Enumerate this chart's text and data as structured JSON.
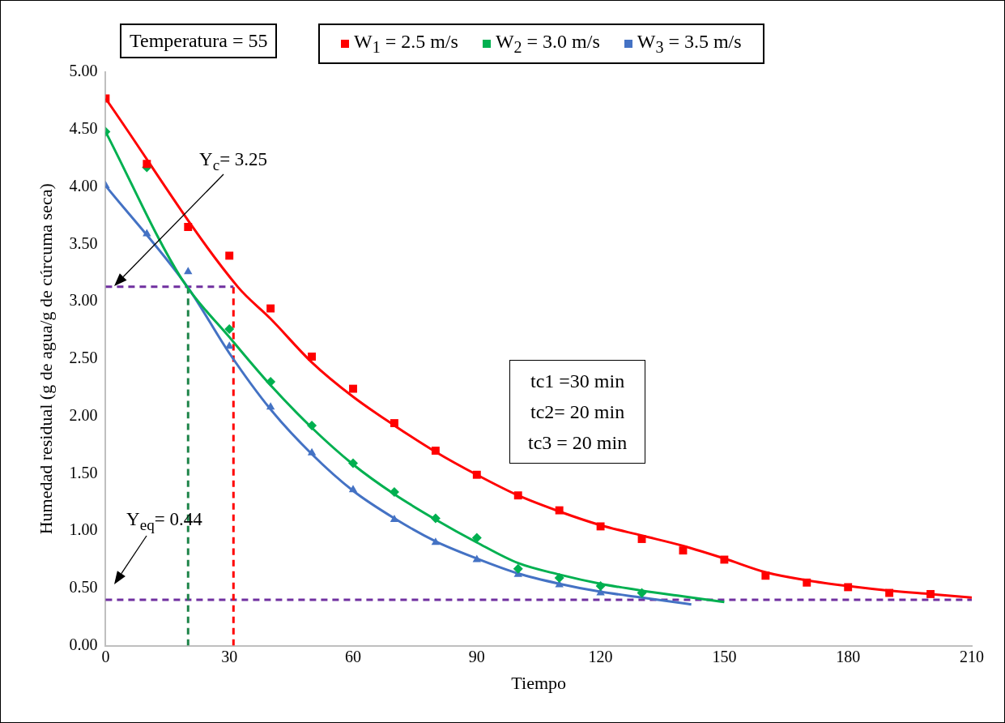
{
  "chart_data": {
    "type": "scatter",
    "xlabel": "Tiempo",
    "ylabel": "Humedad residual (g de agua/g de cúrcuma seca)",
    "xlim": [
      0,
      210
    ],
    "xticks": [
      0,
      30,
      60,
      90,
      120,
      150,
      180,
      210
    ],
    "ylim": [
      0,
      5
    ],
    "yticks": [
      {
        "value": 0,
        "label": "0.00"
      },
      {
        "value": 0.5,
        "label": "0.50"
      },
      {
        "value": 1,
        "label": "1.00"
      },
      {
        "value": 1.5,
        "label": "1.50"
      },
      {
        "value": 2,
        "label": "2.00"
      },
      {
        "value": 2.5,
        "label": "2.50"
      },
      {
        "value": 3,
        "label": "3.00"
      },
      {
        "value": 3.5,
        "label": "3.50"
      },
      {
        "value": 4,
        "label": "4.00"
      },
      {
        "value": 4.5,
        "label": "4.50"
      },
      {
        "value": 5,
        "label": "5.00"
      }
    ],
    "grid": false,
    "legend": "top",
    "series": [
      {
        "name": "W$_{1}$ = 2.5 m/s",
        "type": "scatter",
        "marker": "square",
        "color": "#ff0000",
        "x": [
          0,
          10,
          20,
          30,
          40,
          50,
          60,
          70,
          80,
          90,
          100,
          110,
          120,
          130,
          140,
          150,
          160,
          170,
          180,
          190,
          200
        ],
        "values": [
          4.77,
          4.2,
          3.65,
          3.4,
          2.94,
          2.52,
          2.24,
          1.94,
          1.7,
          1.49,
          1.31,
          1.18,
          1.04,
          0.93,
          0.83,
          0.75,
          0.61,
          0.55,
          0.51,
          0.46,
          0.45
        ]
      },
      {
        "name": "W$_{2}$ = 3.0 m/s",
        "type": "scatter",
        "marker": "diamond",
        "color": "#00b050",
        "x": [
          0,
          10,
          30,
          40,
          50,
          60,
          70,
          80,
          90,
          100,
          110,
          120,
          130
        ],
        "values": [
          4.48,
          4.17,
          2.76,
          2.3,
          1.92,
          1.59,
          1.34,
          1.11,
          0.94,
          0.67,
          0.59,
          0.52,
          0.46
        ]
      },
      {
        "name": "W$_{3}$ = 3.5 m/s",
        "type": "scatter",
        "marker": "triangle",
        "color": "#4472c4",
        "x": [
          0,
          10,
          20,
          30,
          40,
          50,
          60,
          70,
          80,
          90,
          100,
          110,
          120
        ],
        "values": [
          4.01,
          3.59,
          3.26,
          2.61,
          2.08,
          1.68,
          1.36,
          1.1,
          0.9,
          0.75,
          0.62,
          0.53,
          0.46
        ]
      },
      {
        "type": "line",
        "marker": "none",
        "color": "#ff0000",
        "x": [
          0,
          32,
          40,
          50,
          60,
          70,
          80,
          90,
          100,
          110,
          120,
          130,
          140,
          150,
          160,
          170,
          180,
          190,
          200,
          210
        ],
        "values": [
          4.77,
          3.13,
          2.85,
          2.47,
          2.17,
          1.92,
          1.69,
          1.49,
          1.31,
          1.17,
          1.05,
          0.96,
          0.87,
          0.76,
          0.64,
          0.57,
          0.52,
          0.48,
          0.45,
          0.42
        ]
      },
      {
        "type": "line",
        "marker": "none",
        "color": "#00b050",
        "x": [
          0,
          18.4,
          30,
          40,
          50,
          60,
          70,
          80,
          90,
          100,
          110,
          120,
          130,
          140,
          150
        ],
        "values": [
          4.48,
          3.2,
          2.69,
          2.27,
          1.9,
          1.58,
          1.32,
          1.1,
          0.9,
          0.72,
          0.62,
          0.54,
          0.48,
          0.43,
          0.38
        ]
      },
      {
        "type": "line",
        "marker": "none",
        "color": "#4472c4",
        "x": [
          0,
          20,
          30,
          40,
          50,
          60,
          70,
          80,
          90,
          100,
          110,
          120,
          130,
          142
        ],
        "values": [
          4.01,
          3.12,
          2.55,
          2.06,
          1.67,
          1.35,
          1.11,
          0.91,
          0.76,
          0.63,
          0.54,
          0.47,
          0.42,
          0.36
        ]
      },
      {
        "type": "line",
        "marker": "none",
        "line_style": "dashed",
        "color": "#7030a0",
        "x": [
          0,
          31
        ],
        "values": [
          3.13,
          3.13
        ]
      },
      {
        "type": "line",
        "marker": "none",
        "line_style": "dashed",
        "color": "#1e8449",
        "x": [
          20,
          20
        ],
        "values": [
          0,
          3.13
        ]
      },
      {
        "type": "line",
        "marker": "none",
        "line_style": "dashed",
        "color": "#ff0000",
        "x": [
          31,
          31
        ],
        "values": [
          0,
          3.13
        ]
      }
    ],
    "ref_lines": [
      {
        "axis": "y",
        "value": 0.4,
        "color": "#7030a0",
        "line_style": "dashed"
      }
    ],
    "annotations": [
      "Temperatura = 55",
      "Y$_{c}$= 3.25",
      "Y$_{eq}$= 0.44",
      "tc1 =30 min",
      "tc2= 20 min",
      "tc3 = 20 min"
    ]
  }
}
